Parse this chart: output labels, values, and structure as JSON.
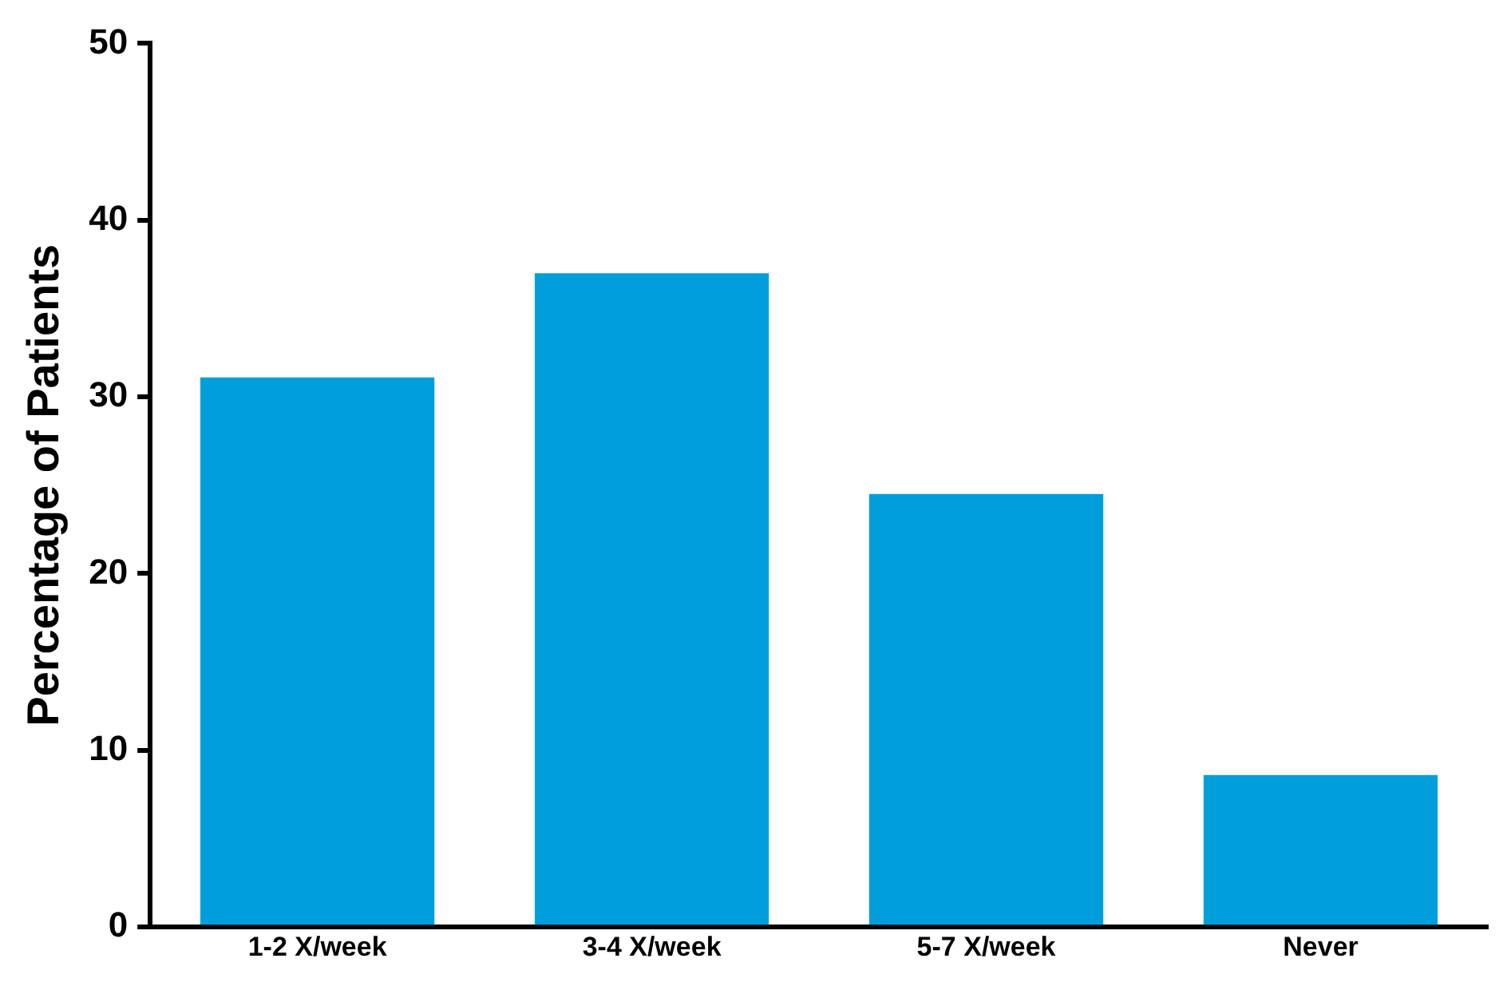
{
  "chart_data": {
    "type": "bar",
    "ylabel": "Percentage of Patients",
    "categories": [
      "1-2 X/week",
      "3-4 X/week",
      "5-7 X/week",
      "Never"
    ],
    "values": [
      31.1,
      37.0,
      24.5,
      8.6
    ],
    "color": "#009fdc",
    "ylim": [
      0,
      50
    ],
    "yticks": [
      0,
      10,
      20,
      30,
      40,
      50
    ],
    "grid": false,
    "legend": false
  }
}
